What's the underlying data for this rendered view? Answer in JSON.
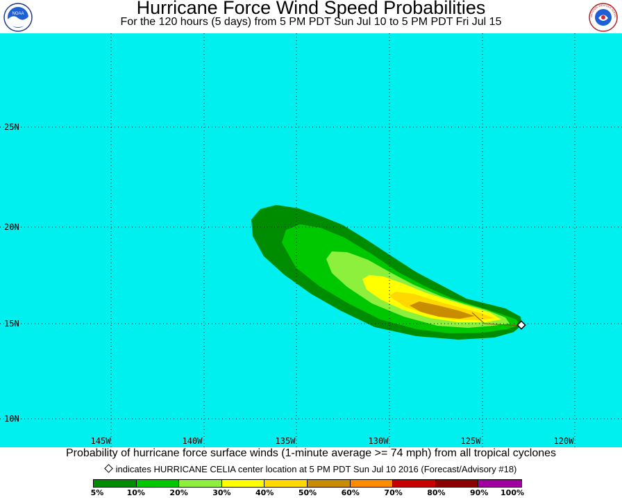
{
  "header": {
    "title": "Hurricane Force Wind Speed Probabilities",
    "subtitle": "For the 120 hours (5 days) from 5 PM PDT Sun Jul 10 to 5 PM PDT Fri Jul 15",
    "left_logo_text": "NOAA",
    "right_logo_text": "NATIONAL WEATHER SERVICE"
  },
  "map": {
    "ocean_color": "#00f0f0",
    "grid_style": "dotted",
    "longitude_labels": [
      "145W",
      "140W",
      "135W",
      "130W",
      "125W",
      "120W"
    ],
    "latitude_labels": [
      "25N",
      "20N",
      "15N",
      "10N"
    ],
    "storm_center": {
      "lon": -122.6,
      "lat": 14.9
    }
  },
  "footer": {
    "caption": "Probability of hurricane force surface winds (1-minute average >= 74 mph) from all tropical cyclones",
    "marker_text": "indicates HURRICANE CELIA center location at 5 PM PDT Sun Jul 10 2016 (Forecast/Advisory #18)"
  },
  "legend": {
    "bins": [
      {
        "color": "#008c00"
      },
      {
        "color": "#00c800"
      },
      {
        "color": "#8cf03c"
      },
      {
        "color": "#ffff00"
      },
      {
        "color": "#ffd800"
      },
      {
        "color": "#c88c00"
      },
      {
        "color": "#ff8c00"
      },
      {
        "color": "#c80000"
      },
      {
        "color": "#8c0000"
      },
      {
        "color": "#a000a0"
      }
    ],
    "labels": [
      "5%",
      "10%",
      "20%",
      "30%",
      "40%",
      "50%",
      "60%",
      "70%",
      "80%",
      "90%",
      "100%"
    ]
  }
}
